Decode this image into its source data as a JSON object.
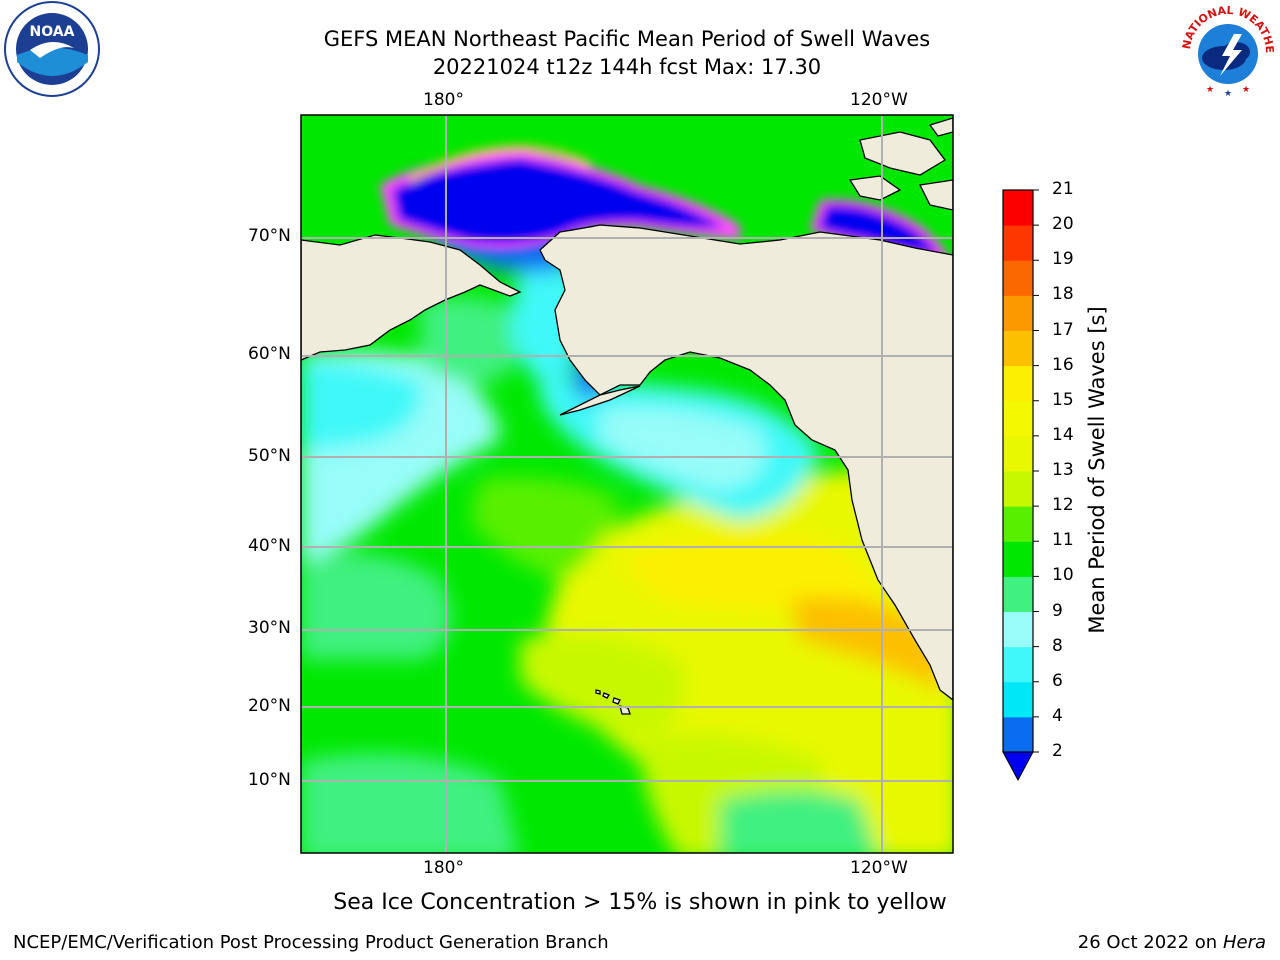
{
  "title": {
    "line1": "GEFS MEAN Northeast Pacific Mean Period of Swell Waves",
    "line2": "20221024 t12z 144h fcst   Max: 17.30"
  },
  "map": {
    "lon_top_labels": [
      "180°",
      "120°W"
    ],
    "lon_bottom_labels": [
      "180°",
      "120°W"
    ],
    "lat_labels": [
      "70°N",
      "60°N",
      "50°N",
      "40°N",
      "30°N",
      "20°N",
      "10°N"
    ],
    "gridlines": true,
    "land_color": "#efecdc"
  },
  "colorbar": {
    "title": "Mean Period of Swell Waves [s]",
    "ticks": [
      "2",
      "4",
      "6",
      "8",
      "9",
      "10",
      "11",
      "12",
      "13",
      "14",
      "15",
      "16",
      "17",
      "18",
      "19",
      "20",
      "21"
    ],
    "colors": [
      "#0a6cf0",
      "#00e8f8",
      "#40f8f8",
      "#98fcf8",
      "#40f080",
      "#00e800",
      "#58f000",
      "#c8f800",
      "#e8f800",
      "#f4f800",
      "#fcf000",
      "#fcc000",
      "#fc9800",
      "#fc6800",
      "#fc3800",
      "#fc0000"
    ],
    "under_color": "#0000f0"
  },
  "note": "Sea Ice Concentration > 15% is shown in pink to yellow",
  "footer": {
    "left": "NCEP/EMC/Verification Post Processing Product Generation Branch",
    "date": "26 Oct 2022 on",
    "system": "Hera"
  },
  "logos": {
    "noaa_text": "NOAA",
    "nws_text": "NATIONAL WEATHER SERVICE"
  }
}
